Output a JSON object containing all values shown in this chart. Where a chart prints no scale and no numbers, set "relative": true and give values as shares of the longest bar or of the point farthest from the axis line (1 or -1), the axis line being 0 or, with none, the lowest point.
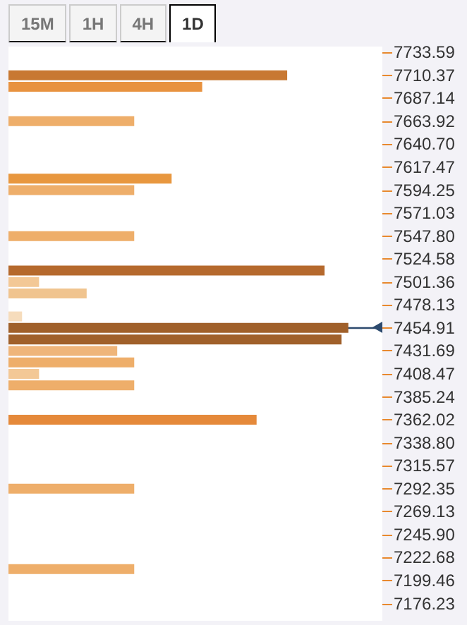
{
  "chart_data": {
    "type": "bar",
    "orientation": "horizontal",
    "relative": true,
    "annotations": [
      "15M",
      "1H",
      "4H",
      "1D"
    ],
    "x": [
      7710.37,
      7698.76,
      7663.92,
      7605.87,
      7594.25,
      7547.8,
      7512.97,
      7501.36,
      7489.75,
      7466.53,
      7454.91,
      7443.3,
      7431.69,
      7420.08,
      7408.47,
      7396.86,
      7362.02,
      7292.35,
      7211.07
    ],
    "values": [
      0.82,
      0.57,
      0.37,
      0.48,
      0.37,
      0.37,
      0.93,
      0.09,
      0.23,
      0.04,
      1,
      0.98,
      0.32,
      0.37,
      0.09,
      0.37,
      0.73,
      0.37,
      0.37
    ],
    "colors": [
      "#c87832",
      "#e8923f",
      "#eeae6a",
      "#e8973f",
      "#eeae6a",
      "#eeae6a",
      "#b5692d",
      "#f3c896",
      "#f0c48f",
      "#f6dcbc",
      "#a0602a",
      "#a0602a",
      "#efb57a",
      "#eeae6a",
      "#f3c896",
      "#eeae6a",
      "#e5893a",
      "#eeae6a",
      "#eeae6a"
    ],
    "ylim": [
      7158.81,
      7739.4
    ],
    "yticks": [
      7733.59,
      7710.37,
      7687.14,
      7663.92,
      {
        "value": 7640.7,
        "label": "7640.70"
      },
      7617.47,
      7594.25,
      7571.03,
      {
        "value": 7547.8,
        "label": "7547.80"
      },
      7524.58,
      7501.36,
      7478.13,
      7454.91,
      7431.69,
      7408.47,
      7385.24,
      7362.02,
      {
        "value": 7338.8,
        "label": "7338.80"
      },
      7315.57,
      7292.35,
      7269.13,
      {
        "value": 7245.9,
        "label": "7245.90"
      },
      7222.68,
      7199.46,
      7176.23
    ],
    "ref_lines": [
      {
        "axis": "y",
        "value": 7454.91,
        "color": "#2c4a6e"
      }
    ]
  }
}
